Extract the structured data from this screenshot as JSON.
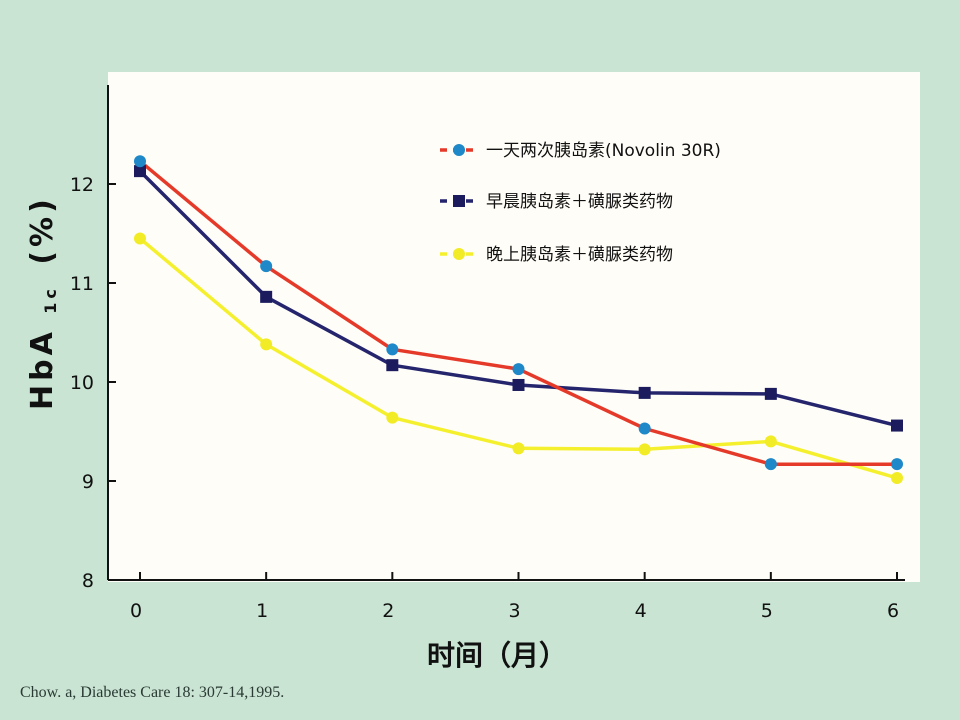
{
  "chart_data": {
    "type": "line",
    "x": [
      0,
      1,
      2,
      3,
      4,
      5,
      6
    ],
    "xlim": [
      0,
      6
    ],
    "ylim": [
      8,
      13
    ],
    "x_ticks": [
      "0",
      "1",
      "2",
      "3",
      "4",
      "5",
      "6"
    ],
    "y_ticks": [
      "8",
      "9",
      "10",
      "11",
      "12"
    ],
    "xlabel": "时间（月）",
    "ylabel_main": "HbA",
    "ylabel_sub": "1c",
    "ylabel_unit": "(%)",
    "legend_position": "top-right",
    "grid": false,
    "series": [
      {
        "name": "一天两次胰岛素(Novolin 30R)",
        "line_color": "#e53a2a",
        "marker_color": "#1e88c8",
        "marker": "circle",
        "values": [
          12.23,
          11.17,
          10.33,
          10.13,
          9.53,
          9.17,
          9.17
        ]
      },
      {
        "name": "早晨胰岛素＋磺脲类药物",
        "line_color": "#25256e",
        "marker_color": "#1b1b5e",
        "marker": "square",
        "values": [
          12.13,
          10.86,
          10.17,
          9.97,
          9.89,
          9.88,
          9.56
        ]
      },
      {
        "name": "晚上胰岛素＋磺脲类药物",
        "line_color": "#f5f02e",
        "marker_color": "#f2ec26",
        "marker": "circle",
        "values": [
          11.45,
          10.38,
          9.64,
          9.33,
          9.32,
          9.4,
          9.03
        ]
      }
    ]
  },
  "citation": "Chow. a, Diabetes Care 18: 307-14,1995."
}
